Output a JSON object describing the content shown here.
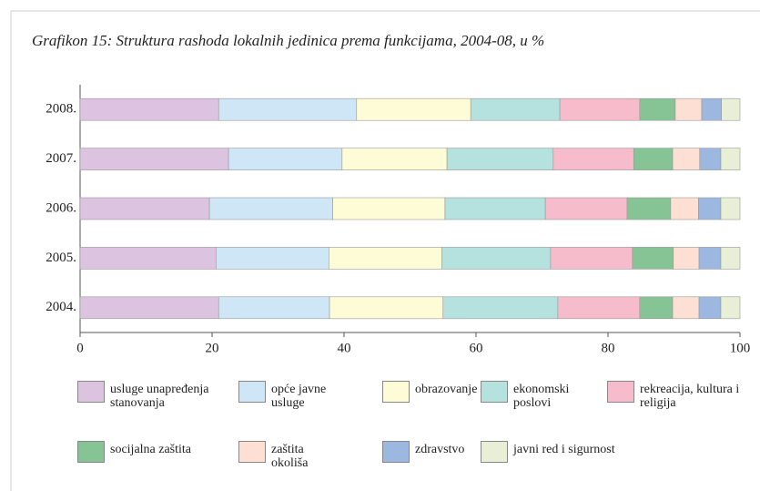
{
  "chart_data": {
    "type": "stacked_barh",
    "title": "Grafikon 15: Struktura rashoda lokalnih jedinica prema  funkcijama, 2004-08, u %",
    "categories": [
      "2008.",
      "2007.",
      "2006.",
      "2005.",
      "2004."
    ],
    "series": [
      {
        "name": "usluge unapređenja stanovanja",
        "color": "#dcc3e0",
        "values": [
          21.0,
          22.5,
          19.6,
          20.6,
          21.0
        ]
      },
      {
        "name": "opće javne usluge",
        "color": "#cfe6f7",
        "values": [
          20.9,
          17.2,
          18.7,
          17.1,
          16.8
        ]
      },
      {
        "name": "obrazovanje",
        "color": "#fefcd6",
        "values": [
          17.3,
          15.9,
          17.0,
          17.1,
          17.2
        ]
      },
      {
        "name": "ekonomski poslovi",
        "color": "#b5e2de",
        "values": [
          13.5,
          16.1,
          15.2,
          16.5,
          17.4
        ]
      },
      {
        "name": "rekreacija, kultura i religija",
        "color": "#f7bccb",
        "values": [
          12.1,
          12.2,
          12.4,
          12.4,
          12.4
        ]
      },
      {
        "name": "socijalna zaštita",
        "color": "#86c495",
        "values": [
          5.4,
          5.9,
          6.6,
          6.2,
          5.0
        ]
      },
      {
        "name": "zaštita okoliša",
        "color": "#fddfd3",
        "values": [
          4.0,
          4.1,
          4.2,
          3.9,
          4.0
        ]
      },
      {
        "name": "zdravstvo",
        "color": "#9db8e0",
        "values": [
          3.0,
          3.2,
          3.4,
          3.3,
          3.3
        ]
      },
      {
        "name": "javni red i sigurnost",
        "color": "#e7f0d6",
        "values": [
          2.8,
          2.9,
          2.9,
          2.9,
          2.9
        ]
      }
    ],
    "xlim": [
      0,
      100
    ],
    "xticks": [
      0,
      20,
      40,
      60,
      80,
      100
    ]
  }
}
